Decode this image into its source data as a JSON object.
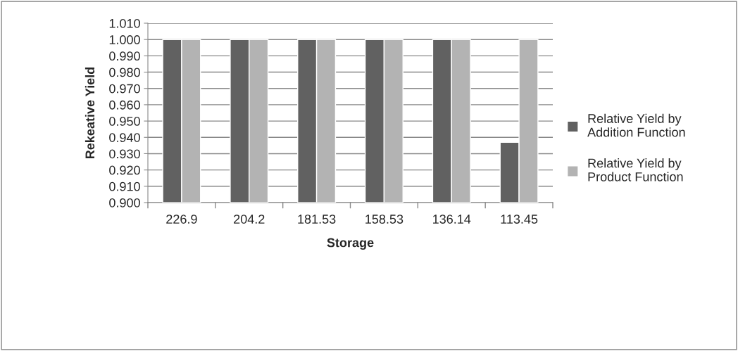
{
  "chart_data": {
    "type": "bar",
    "xlabel": "Storage",
    "ylabel": "Rekeative Yield",
    "categories": [
      "226.9",
      "204.2",
      "181.53",
      "158.53",
      "136.14",
      "113.45"
    ],
    "series": [
      {
        "name": "Relative Yield by Addition Function",
        "color": "#616161",
        "values": [
          1.0,
          1.0,
          1.0,
          1.0,
          1.0,
          0.937
        ]
      },
      {
        "name": "Relative Yield by Product Function",
        "color": "#b3b3b3",
        "values": [
          1.0,
          1.0,
          1.0,
          1.0,
          1.0,
          1.0
        ]
      }
    ],
    "ylim": [
      0.9,
      1.01
    ],
    "yticks": [
      {
        "value": 0.9,
        "label": "0.900"
      },
      {
        "value": 0.91,
        "label": "0.910"
      },
      {
        "value": 0.92,
        "label": "0.920"
      },
      {
        "value": 0.93,
        "label": "0.930"
      },
      {
        "value": 0.94,
        "label": "0.940"
      },
      {
        "value": 0.95,
        "label": "0.950"
      },
      {
        "value": 0.96,
        "label": "0.960"
      },
      {
        "value": 0.97,
        "label": "0.970"
      },
      {
        "value": 0.98,
        "label": "0.980"
      },
      {
        "value": 0.99,
        "label": "0.990"
      },
      {
        "value": 1.0,
        "label": "1.000"
      },
      {
        "value": 1.01,
        "label": "1.010"
      }
    ],
    "grid": "y",
    "legend": "right"
  }
}
